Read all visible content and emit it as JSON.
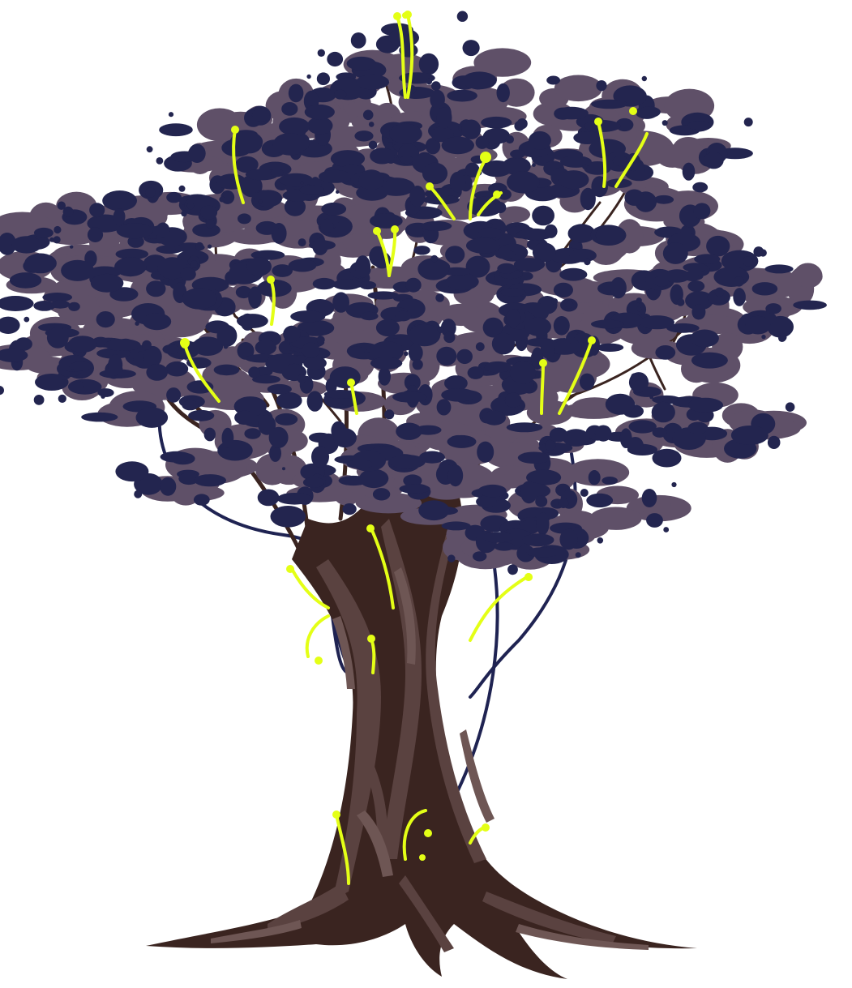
{
  "scene": {
    "subject": "tree-illustration",
    "background_color": "#ffffff"
  },
  "palette": {
    "foliage_light": "#5f5068",
    "foliage_dark": "#23254f",
    "trunk_dark": "#3a2420",
    "trunk_mid": "#5a4240",
    "trunk_light": "#6e5654",
    "branch": "#3a2420",
    "vine": "#1f2352",
    "glow": "#e4ff16"
  },
  "icons": {
    "tree": "tree-icon",
    "sprout": "glowing-sprout-icon",
    "vine": "hanging-vine-icon"
  }
}
